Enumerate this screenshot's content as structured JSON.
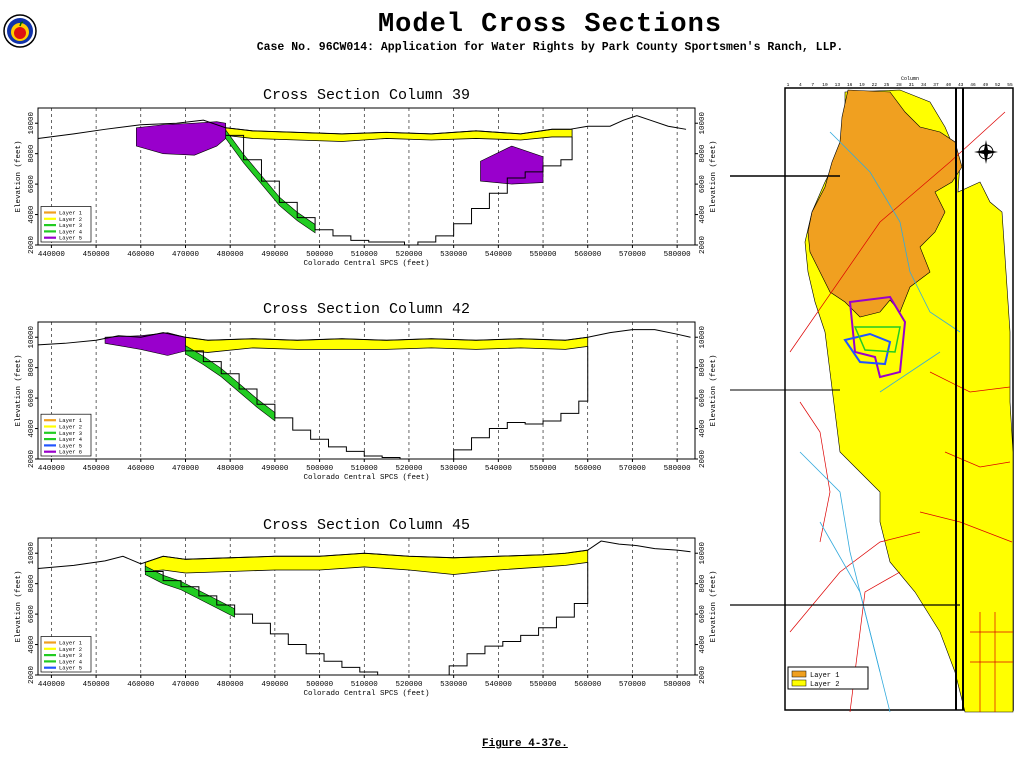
{
  "header": {
    "title": "Model Cross Sections",
    "subtitle": "Case No. 96CW014: Application for Water Rights by Park County Sportsmen's Ranch, LLP."
  },
  "footer": {
    "figure_label": "Figure 4-37e."
  },
  "colors": {
    "yellow": "#ffff00",
    "green": "#22cc22",
    "purple": "#9900cc",
    "orange": "#f0a020",
    "red": "#dd0000",
    "blue": "#2255ff",
    "cyan": "#33aadd"
  },
  "chart_data": [
    {
      "type": "area",
      "title": "Cross Section Column 39",
      "xlabel": "Colorado Central SPCS (feet)",
      "ylabel": "Elevation (feet)",
      "ylabel_right": "Elevation (feet)",
      "x_ticks": [
        440000,
        450000,
        460000,
        470000,
        480000,
        490000,
        500000,
        510000,
        520000,
        530000,
        540000,
        550000,
        560000,
        570000,
        580000
      ],
      "y_ticks": [
        2000,
        4000,
        6000,
        8000,
        10000
      ],
      "xlim": [
        437000,
        584000
      ],
      "ylim": [
        2000,
        11000
      ],
      "legend": [
        "Layer 1",
        "Layer 2",
        "Layer 3",
        "Layer 4",
        "Layer 5"
      ],
      "legend_colors": [
        "#f0a020",
        "#ffff00",
        "#22cc22",
        "#22cc22",
        "#9900cc"
      ],
      "surface": {
        "x": [
          437000,
          445000,
          452000,
          460000,
          468000,
          474000,
          479000,
          485000,
          495000,
          505000,
          515000,
          525000,
          535000,
          545000,
          552000,
          556000,
          560000,
          565000,
          568000,
          571000,
          574000,
          578000,
          582000
        ],
        "y": [
          9000,
          9300,
          9600,
          9900,
          10000,
          10200,
          9700,
          9500,
          9400,
          9300,
          9400,
          9300,
          9500,
          9300,
          9600,
          9600,
          9800,
          9800,
          10200,
          10500,
          10200,
          9800,
          9600
        ]
      },
      "layer2": {
        "x": [
          479000,
          485000,
          495000,
          505000,
          515000,
          525000,
          535000,
          545000,
          552000,
          556000,
          556500
        ],
        "top": [
          9700,
          9500,
          9400,
          9300,
          9400,
          9300,
          9500,
          9300,
          9600,
          9600,
          9600
        ],
        "bottom": [
          9200,
          9000,
          8900,
          8800,
          9000,
          8900,
          9000,
          8900,
          9100,
          9100,
          9100
        ]
      },
      "basement": {
        "x": [
          479000,
          483000,
          487000,
          491000,
          495000,
          499000,
          503000,
          507000,
          511000,
          515000,
          519000,
          522000,
          526000,
          530000,
          534000,
          538000,
          542000,
          546000,
          550000,
          554000,
          556500
        ],
        "y": [
          9200,
          7600,
          6200,
          4800,
          3800,
          3000,
          2600,
          2300,
          2200,
          2200,
          2000,
          2200,
          2600,
          3400,
          4400,
          5400,
          6400,
          6800,
          7200,
          7600,
          9100
        ]
      },
      "purple_areas": [
        {
          "x": [
            459000,
            465000,
            472000,
            477000,
            479000,
            479000,
            476000,
            470000,
            465000,
            460000
          ],
          "top": [
            9700,
            9900,
            10000,
            10100,
            10000
          ],
          "bottom": [
            8500,
            8000,
            7900,
            8500,
            9000
          ]
        },
        {
          "x": [
            536000,
            543000,
            550000
          ],
          "top": [
            7500,
            8500,
            7800
          ],
          "bottom": [
            6200,
            6000,
            6100
          ]
        }
      ]
    },
    {
      "type": "area",
      "title": "Cross Section Column 42",
      "xlabel": "Colorado Central SPCS (feet)",
      "ylabel": "Elevation (feet)",
      "ylabel_right": "Elevation (feet)",
      "x_ticks": [
        440000,
        450000,
        460000,
        470000,
        480000,
        490000,
        500000,
        510000,
        520000,
        530000,
        540000,
        550000,
        560000,
        570000,
        580000
      ],
      "y_ticks": [
        2000,
        4000,
        6000,
        8000,
        10000
      ],
      "xlim": [
        437000,
        584000
      ],
      "ylim": [
        2000,
        11000
      ],
      "legend": [
        "Layer 1",
        "Layer 2",
        "Layer 3",
        "Layer 4",
        "Layer 5",
        "Layer 6"
      ],
      "legend_colors": [
        "#f0a020",
        "#ffff00",
        "#22cc22",
        "#22cc22",
        "#2255ff",
        "#9900cc"
      ],
      "surface": {
        "x": [
          437000,
          443000,
          450000,
          455000,
          460000,
          465000,
          470000,
          475000,
          485000,
          495000,
          505000,
          515000,
          525000,
          535000,
          545000,
          555000,
          560000,
          565000,
          570000,
          575000,
          580000,
          583000
        ],
        "y": [
          9500,
          9600,
          9800,
          10100,
          10000,
          10300,
          10000,
          9800,
          9900,
          9800,
          9900,
          9800,
          9900,
          9800,
          9900,
          9800,
          10000,
          10300,
          10500,
          10500,
          10200,
          10000
        ]
      },
      "layer2": {
        "x": [
          470000,
          475000,
          485000,
          495000,
          505000,
          515000,
          525000,
          535000,
          545000,
          555000,
          560000
        ],
        "top": [
          10000,
          9800,
          9900,
          9800,
          9900,
          9800,
          9900,
          9800,
          9900,
          9800,
          10000
        ],
        "bottom": [
          9100,
          9000,
          9300,
          9200,
          9200,
          9200,
          9300,
          9200,
          9300,
          9200,
          9400
        ]
      },
      "basement": {
        "x": [
          470000,
          474000,
          478000,
          482000,
          486000,
          490000,
          494000,
          498000,
          502000,
          506000,
          510000,
          514000,
          518000,
          522000,
          526000,
          530000,
          534000,
          538000,
          542000,
          546000,
          550000,
          554000,
          558000,
          560000
        ],
        "y": [
          9100,
          8400,
          7600,
          6600,
          5600,
          4700,
          3900,
          3300,
          2800,
          2500,
          2200,
          2100,
          2000,
          2000,
          2000,
          2600,
          3400,
          4000,
          4400,
          4300,
          4500,
          5000,
          5800,
          9400
        ]
      },
      "purple_areas": [
        {
          "x": [
            452000,
            460000,
            466000,
            470000
          ],
          "top": [
            10000,
            10100,
            10300,
            10000
          ],
          "bottom": [
            9600,
            9200,
            8800,
            9100
          ]
        }
      ]
    },
    {
      "type": "area",
      "title": "Cross Section Column 45",
      "xlabel": "Colorado Central SPCS (feet)",
      "ylabel": "Elevation (feet)",
      "ylabel_right": "Elevation (feet)",
      "x_ticks": [
        440000,
        450000,
        460000,
        470000,
        480000,
        490000,
        500000,
        510000,
        520000,
        530000,
        540000,
        550000,
        560000,
        570000,
        580000
      ],
      "y_ticks": [
        2000,
        4000,
        6000,
        8000,
        10000
      ],
      "xlim": [
        437000,
        584000
      ],
      "ylim": [
        2000,
        11000
      ],
      "legend": [
        "Layer 1",
        "Layer 2",
        "Layer 3",
        "Layer 4",
        "Layer 5"
      ],
      "legend_colors": [
        "#f0a020",
        "#ffff00",
        "#22cc22",
        "#22cc22",
        "#2255ff"
      ],
      "surface": {
        "x": [
          437000,
          445000,
          452000,
          456000,
          460000,
          465000,
          470000,
          480000,
          490000,
          500000,
          510000,
          520000,
          530000,
          540000,
          550000,
          555000,
          560000,
          563000,
          567000,
          571000,
          575000,
          580000,
          583000
        ],
        "y": [
          9000,
          9200,
          9500,
          9800,
          9300,
          9800,
          9600,
          9700,
          9800,
          9800,
          10000,
          9800,
          9700,
          9800,
          9900,
          10000,
          10200,
          10800,
          10600,
          10500,
          10300,
          10200,
          10100
        ]
      },
      "layer2": {
        "x": [
          461000,
          465000,
          470000,
          480000,
          490000,
          500000,
          510000,
          520000,
          530000,
          540000,
          550000,
          555000,
          560000
        ],
        "top": [
          9400,
          9800,
          9600,
          9700,
          9800,
          9800,
          10000,
          9800,
          9700,
          9800,
          9900,
          10000,
          10200
        ],
        "bottom": [
          8800,
          8900,
          8700,
          8800,
          8900,
          8900,
          9100,
          8900,
          8600,
          8900,
          9100,
          9200,
          9400
        ]
      },
      "basement": {
        "x": [
          461000,
          465000,
          469000,
          473000,
          477000,
          481000,
          485000,
          489000,
          493000,
          497000,
          501000,
          505000,
          509000,
          513000,
          517000,
          521000,
          525000,
          529000,
          533000,
          537000,
          541000,
          545000,
          549000,
          553000,
          557000,
          560000
        ],
        "y": [
          8800,
          8200,
          7800,
          7200,
          6600,
          6000,
          5400,
          4700,
          4000,
          3400,
          2900,
          2500,
          2200,
          2000,
          2000,
          2000,
          2000,
          2600,
          3400,
          3900,
          4200,
          4600,
          5100,
          5800,
          6700,
          9400
        ]
      },
      "purple_areas": []
    }
  ],
  "map_data": {
    "legend": [
      "Layer 1",
      "Layer 2"
    ],
    "top_axis_label": "Column",
    "top_ticks": [
      "1",
      "4",
      "7",
      "10",
      "13",
      "16",
      "19",
      "22",
      "25",
      "28",
      "31",
      "34",
      "37",
      "40",
      "43",
      "46",
      "49",
      "52",
      "55"
    ]
  }
}
